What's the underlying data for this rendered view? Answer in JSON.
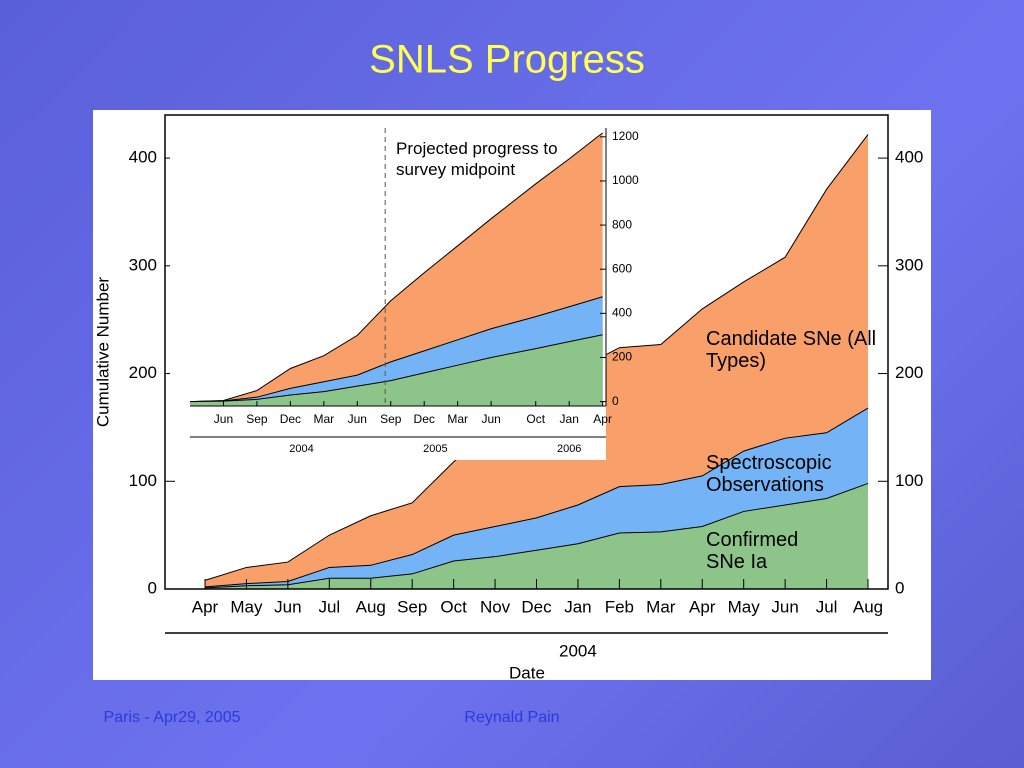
{
  "slide": {
    "title": "SNLS Progress",
    "footer_left": "Paris - Apr29, 2005",
    "footer_center": "Reynald Pain"
  },
  "chart_data": [
    {
      "type": "area",
      "categories": [
        "Apr",
        "May",
        "Jun",
        "Jul",
        "Aug",
        "Sep",
        "Oct",
        "Nov",
        "Dec",
        "Jan",
        "Feb",
        "Mar",
        "Apr",
        "May",
        "Jun",
        "Jul",
        "Aug"
      ],
      "series": [
        {
          "name": "Candidate SNe (All Types)",
          "color": "#f9a06a",
          "values": [
            8,
            20,
            25,
            50,
            68,
            80,
            118,
            150,
            178,
            204,
            224,
            227,
            260,
            285,
            308,
            371,
            422
          ]
        },
        {
          "name": "Spectroscopic Observations",
          "color": "#74b4f6",
          "values": [
            2,
            5,
            7,
            20,
            22,
            32,
            50,
            58,
            66,
            78,
            95,
            97,
            105,
            128,
            140,
            145,
            168
          ]
        },
        {
          "name": "Confirmed SNe Ia",
          "color": "#8dc48a",
          "values": [
            1,
            3,
            4,
            10,
            10,
            14,
            26,
            30,
            36,
            42,
            52,
            53,
            58,
            72,
            78,
            84,
            98
          ]
        }
      ],
      "ylim": [
        0,
        440
      ],
      "yticks": [
        0,
        100,
        200,
        300,
        400
      ],
      "ylabel": "Cumulative Number",
      "xlabel": "Date",
      "year_label": "2004"
    },
    {
      "type": "area",
      "x": [
        2,
        5,
        8,
        11,
        14,
        17,
        20,
        23,
        26,
        29,
        33,
        36,
        39
      ],
      "series": [
        {
          "color": "#f9a06a",
          "values": [
            0,
            5,
            50,
            150,
            208,
            300,
            457,
            584,
            706,
            829,
            987,
            1100,
            1218
          ]
        },
        {
          "color": "#74b4f6",
          "values": [
            0,
            3,
            20,
            60,
            90,
            120,
            180,
            230,
            280,
            330,
            385,
            430,
            475
          ]
        },
        {
          "color": "#8dc48a",
          "values": [
            0,
            2,
            10,
            30,
            45,
            70,
            95,
            130,
            165,
            200,
            240,
            272,
            303
          ]
        }
      ],
      "xlim": [
        2,
        39.3
      ],
      "ylim": [
        -20,
        1240
      ],
      "yticks": [
        0,
        200,
        400,
        600,
        800,
        1000,
        1200
      ],
      "xticks": [
        {
          "value": 5,
          "label": "Jun"
        },
        {
          "value": 8,
          "label": "Sep"
        },
        {
          "value": 11,
          "label": "Dec"
        },
        {
          "value": 14,
          "label": "Mar"
        },
        {
          "value": 17,
          "label": "Jun"
        },
        {
          "value": 20,
          "label": "Sep"
        },
        {
          "value": 23,
          "label": "Dec"
        },
        {
          "value": 26,
          "label": "Mar"
        },
        {
          "value": 29,
          "label": "Jun"
        },
        {
          "value": 33,
          "label": "Oct"
        },
        {
          "value": 36,
          "label": "Jan"
        },
        {
          "value": 39,
          "label": "Apr"
        }
      ],
      "year_ticks": [
        {
          "value": 12,
          "label": "2004"
        },
        {
          "value": 24,
          "label": "2005"
        },
        {
          "value": 36,
          "label": "2006"
        }
      ],
      "annotation": "Projected progress to survey midpoint",
      "marker_x": 19.5
    }
  ]
}
